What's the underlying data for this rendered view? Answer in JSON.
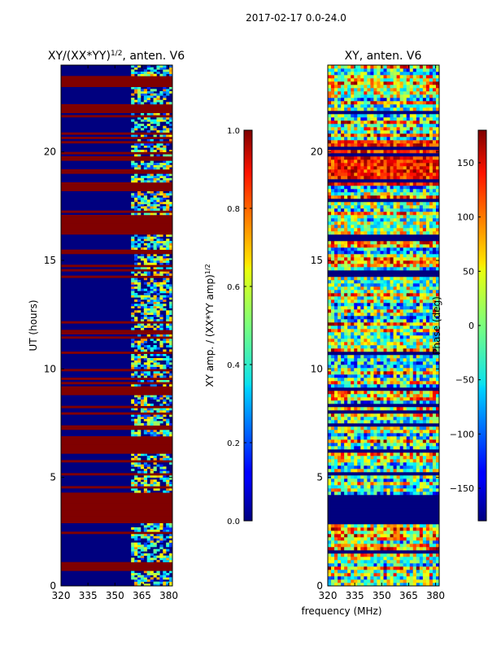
{
  "figure": {
    "suptitle": "2017-02-17 0.0-24.0",
    "xlabel": "frequency (MHz)"
  },
  "chart_data": [
    {
      "type": "heatmap",
      "title_main": "XY/(XX*YY)",
      "title_sup": "1/2",
      "title_rest": ", anten. V6",
      "ylabel": "UT (hours)",
      "xticks": [
        320,
        335,
        350,
        365,
        380
      ],
      "xlim": [
        320,
        382
      ],
      "yticks": [
        0,
        5,
        10,
        15,
        20
      ],
      "ylim": [
        0,
        24
      ],
      "colorbar": {
        "label_main": "XY amp. / (XX*YY amp)",
        "label_sup": "1/2",
        "ticks": [
          "0.0",
          "0.2",
          "0.4",
          "0.6",
          "0.8",
          "1.0"
        ],
        "range": [
          0,
          1
        ],
        "colormap": "jet"
      },
      "features": {
        "saturated_hour_bands": [
          [
            2.9,
            4.2
          ],
          [
            6.1,
            6.6
          ],
          [
            16.2,
            17.1
          ],
          [
            18.3,
            18.6
          ],
          [
            21.8,
            22.2
          ],
          [
            23.0,
            23.5
          ],
          [
            8.9,
            9.2
          ]
        ],
        "active_band_mhz": [
          359,
          382
        ]
      }
    },
    {
      "type": "heatmap",
      "title": "XY, anten. V6",
      "xticks": [
        320,
        335,
        350,
        365,
        380
      ],
      "xlim": [
        320,
        382
      ],
      "yticks": [
        0,
        5,
        10,
        15,
        20
      ],
      "ylim": [
        0,
        24
      ],
      "colorbar": {
        "label": "Phase (deg)",
        "ticks": [
          "150",
          "100",
          "50",
          "0",
          "−50",
          "−100",
          "−150"
        ],
        "range": [
          -180,
          180
        ],
        "colormap": "jet"
      },
      "features": {
        "low_phase_hour_bands": [
          [
            2.9,
            4.2
          ]
        ]
      }
    }
  ],
  "colors": {
    "saturated": "#800000",
    "background": "#00007f"
  }
}
